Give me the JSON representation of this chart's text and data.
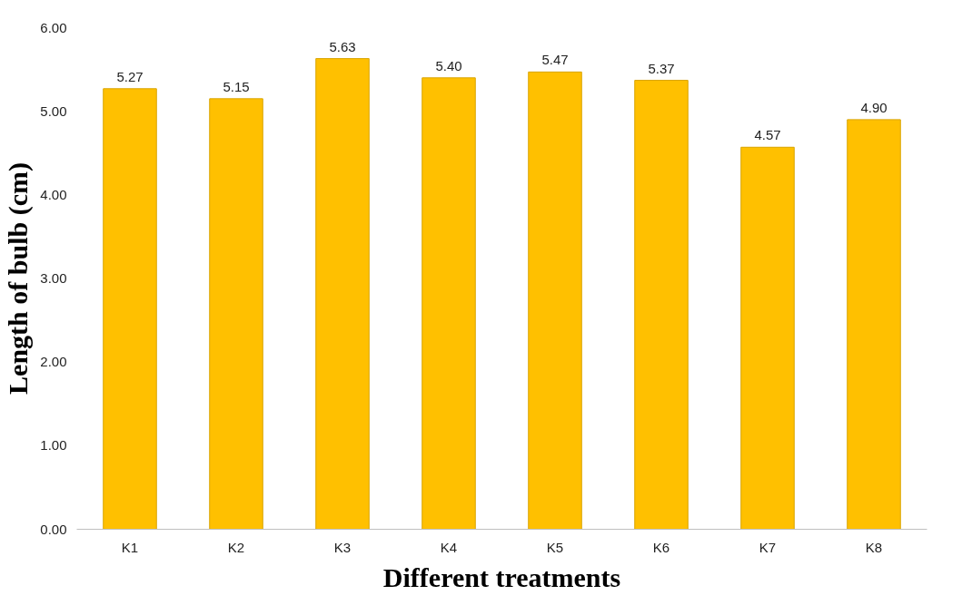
{
  "chart_data": {
    "type": "bar",
    "xlabel": "Different treatments",
    "ylabel": "Length of bulb (cm)",
    "categories": [
      "K1",
      "K2",
      "K3",
      "K4",
      "K5",
      "K6",
      "K7",
      "K8"
    ],
    "values": [
      5.27,
      5.15,
      5.63,
      5.4,
      5.47,
      5.37,
      4.57,
      4.9
    ],
    "value_labels": [
      "5.27",
      "5.15",
      "5.63",
      "5.40",
      "5.47",
      "5.37",
      "4.57",
      "4.90"
    ],
    "color": "#ffc000",
    "ylim": [
      0,
      6
    ],
    "yticks": [
      {
        "value": 0,
        "label": "0.00"
      },
      {
        "value": 1,
        "label": "1.00"
      },
      {
        "value": 2,
        "label": "2.00"
      },
      {
        "value": 3,
        "label": "3.00"
      },
      {
        "value": 4,
        "label": "4.00"
      },
      {
        "value": 5,
        "label": "5.00"
      },
      {
        "value": 6,
        "label": "6.00"
      }
    ],
    "grid": false
  }
}
